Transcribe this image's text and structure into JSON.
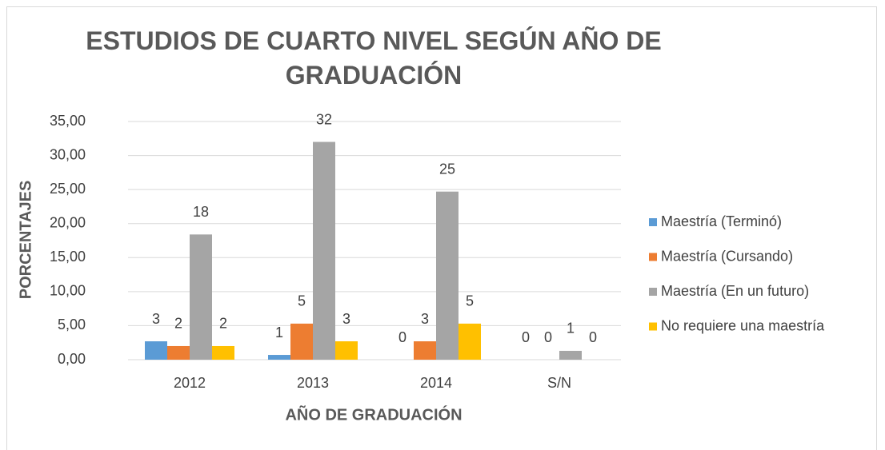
{
  "chart_data": {
    "type": "bar",
    "title": "ESTUDIOS DE CUARTO NIVEL SEGÚN AÑO DE GRADUACIÓN",
    "x_label": "AÑO DE GRADUACIÓN",
    "y_label": "PORCENTAJES",
    "categories": [
      "2012",
      "2013",
      "2014",
      "S/N"
    ],
    "series": [
      {
        "name": "Maestría (Terminó)",
        "color": "#5b9bd5",
        "values": [
          2.7,
          0.7,
          0,
          0
        ],
        "value_labels": [
          "3",
          "1",
          "0",
          "0"
        ]
      },
      {
        "name": "Maestría (Cursando)",
        "color": "#ed7d31",
        "values": [
          2.0,
          5.3,
          2.7,
          0
        ],
        "value_labels": [
          "2",
          "5",
          "3",
          "0"
        ]
      },
      {
        "name": "Maestría (En un futuro)",
        "color": "#a5a5a5",
        "values": [
          18.4,
          32.0,
          24.7,
          1.3
        ],
        "value_labels": [
          "18",
          "32",
          "25",
          "1"
        ]
      },
      {
        "name": "No requiere una maestría",
        "color": "#ffc000",
        "values": [
          2.0,
          2.7,
          5.3,
          0
        ],
        "value_labels": [
          "2",
          "3",
          "5",
          "0"
        ]
      }
    ],
    "ylim": [
      0,
      35
    ],
    "yticks": [
      {
        "value": 0,
        "label": "0,00"
      },
      {
        "value": 5,
        "label": "5,00"
      },
      {
        "value": 10,
        "label": "10,00"
      },
      {
        "value": 15,
        "label": "15,00"
      },
      {
        "value": 20,
        "label": "20,00"
      },
      {
        "value": 25,
        "label": "25,00"
      },
      {
        "value": 30,
        "label": "30,00"
      },
      {
        "value": 35,
        "label": "35,00"
      }
    ],
    "grid": true,
    "legend": "right"
  }
}
